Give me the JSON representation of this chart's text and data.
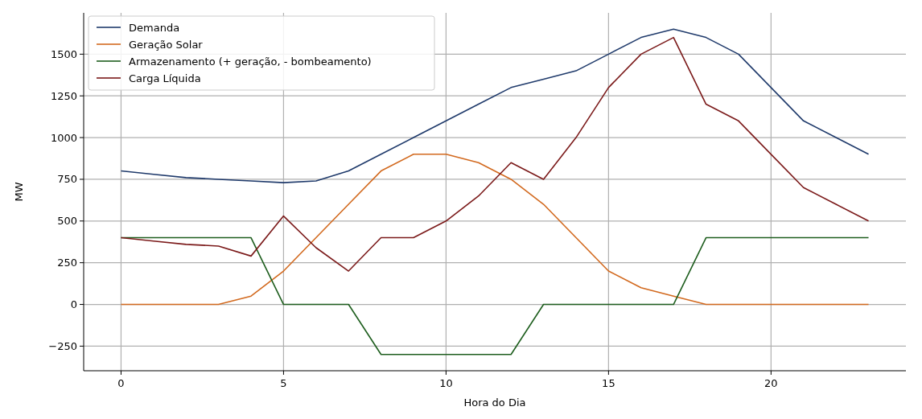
{
  "chart_data": {
    "type": "line",
    "xlabel": "Hora do Dia",
    "ylabel": "MW",
    "x": [
      0,
      1,
      2,
      3,
      4,
      5,
      6,
      7,
      8,
      9,
      10,
      11,
      12,
      13,
      14,
      15,
      16,
      17,
      18,
      19,
      20,
      21,
      22,
      23
    ],
    "series": [
      {
        "name": "Demanda",
        "color": "#1f3a6b",
        "values": [
          800,
          780,
          760,
          750,
          740,
          730,
          740,
          800,
          900,
          1000,
          1100,
          1200,
          1300,
          1350,
          1400,
          1500,
          1600,
          1650,
          1600,
          1500,
          1300,
          1100,
          1000,
          900
        ]
      },
      {
        "name": "Geração Solar",
        "color": "#d2691e",
        "values": [
          0,
          0,
          0,
          0,
          50,
          200,
          400,
          600,
          800,
          900,
          900,
          850,
          750,
          600,
          400,
          200,
          100,
          50,
          0,
          0,
          0,
          0,
          0,
          0
        ]
      },
      {
        "name": "Armazenamento (+ geração, - bombeamento)",
        "color": "#1e5e1e",
        "values": [
          400,
          400,
          400,
          400,
          400,
          0,
          0,
          0,
          -300,
          -300,
          -300,
          -300,
          -300,
          0,
          0,
          0,
          0,
          0,
          400,
          400,
          400,
          400,
          400,
          400
        ]
      },
      {
        "name": "Carga Líquida",
        "color": "#7b1a1a",
        "values": [
          400,
          380,
          360,
          350,
          290,
          530,
          340,
          200,
          400,
          400,
          500,
          650,
          850,
          750,
          1000,
          1300,
          1500,
          1600,
          1200,
          1100,
          900,
          700,
          600,
          500
        ]
      }
    ],
    "xlim": [
      -1.15,
      24.15
    ],
    "ylim": [
      -397.5,
      1747.5
    ],
    "xticks": [
      0,
      5,
      10,
      15,
      20
    ],
    "yticks": [
      {
        "value": -250,
        "label": "−250"
      },
      0,
      250,
      500,
      750,
      1000,
      1250,
      1500
    ],
    "grid": true,
    "legend": "top left",
    "marker": "none",
    "line_style": "solid"
  }
}
